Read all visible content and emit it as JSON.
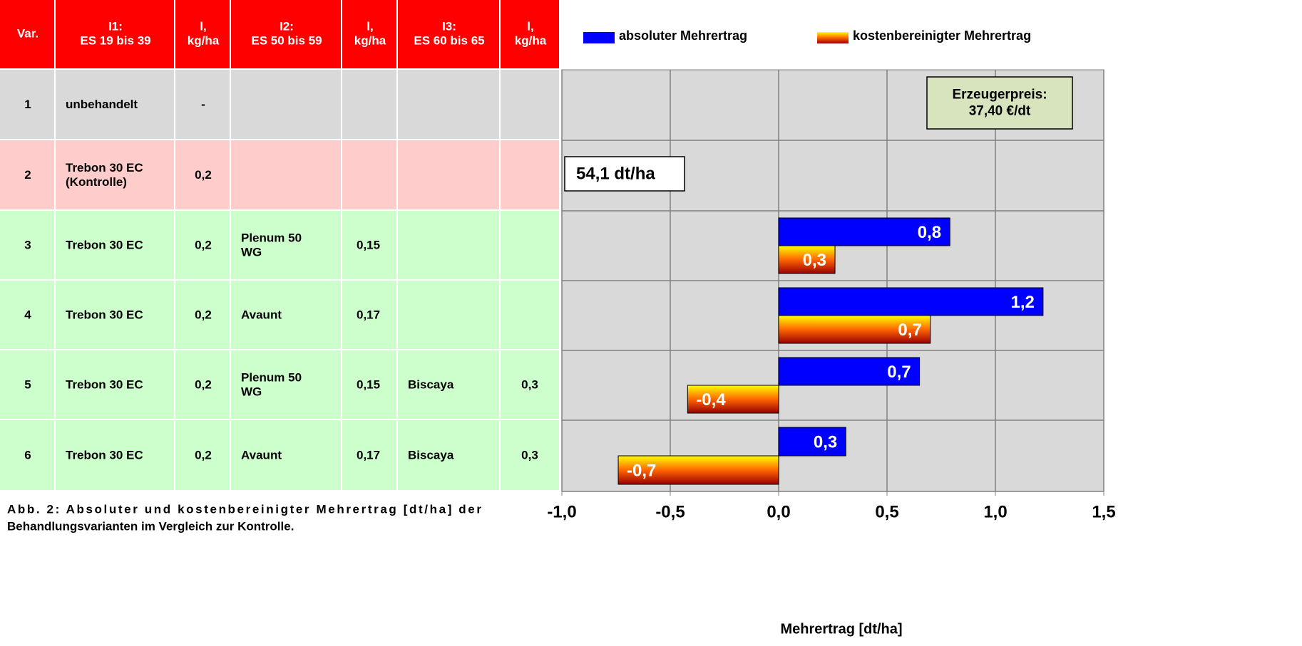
{
  "table": {
    "header": [
      [
        "Var."
      ],
      [
        "I1:",
        "ES 19 bis 39"
      ],
      [
        "l,",
        "kg/ha"
      ],
      [
        "I2:",
        "ES 50 bis 59"
      ],
      [
        "l,",
        "kg/ha"
      ],
      [
        "I3:",
        "ES 60 bis 65"
      ],
      [
        "l,",
        "kg/ha"
      ]
    ],
    "rows": [
      [
        [
          "1"
        ],
        [
          "unbehandelt"
        ],
        [
          "-"
        ],
        [],
        [],
        [],
        []
      ],
      [
        [
          "2"
        ],
        [
          "Trebon 30 EC",
          "(Kontrolle)"
        ],
        [
          "0,2"
        ],
        [],
        [],
        [],
        []
      ],
      [
        [
          "3"
        ],
        [
          "Trebon 30 EC"
        ],
        [
          "0,2"
        ],
        [
          "Plenum 50",
          "WG"
        ],
        [
          "0,15"
        ],
        [],
        []
      ],
      [
        [
          "4"
        ],
        [
          "Trebon 30 EC"
        ],
        [
          "0,2"
        ],
        [
          "Avaunt"
        ],
        [
          "0,17"
        ],
        [],
        []
      ],
      [
        [
          "5"
        ],
        [
          "Trebon 30 EC"
        ],
        [
          "0,2"
        ],
        [
          "Plenum 50",
          "WG"
        ],
        [
          "0,15"
        ],
        [
          "Biscaya"
        ],
        [
          "0,3"
        ]
      ],
      [
        [
          "6"
        ],
        [
          "Trebon 30 EC"
        ],
        [
          "0,2"
        ],
        [
          "Avaunt"
        ],
        [
          "0,17"
        ],
        [
          "Biscaya"
        ],
        [
          "0,3"
        ]
      ]
    ],
    "header_color": "#ff0000",
    "row_colors": [
      "#d9d9d9",
      "#ffcccc",
      "#ccffcc",
      "#ccffcc",
      "#ccffcc",
      "#ccffcc"
    ]
  },
  "caption": [
    "Abb. 2: Absoluter und kostenbereinigter  Mehrertrag [dt/ha] der",
    "Behandlungsvarianten im Vergleich zur Kontrolle."
  ],
  "chart_data": {
    "type": "bar",
    "orientation": "horizontal",
    "x_label": "Mehrertrag [dt/ha]",
    "xlim": [
      -1,
      1.5
    ],
    "xticks": [
      {
        "value": -1,
        "label": "-1,0"
      },
      {
        "value": -0.5,
        "label": "-0,5"
      },
      {
        "value": 0,
        "label": "0,0"
      },
      {
        "value": 0.5,
        "label": "0,5"
      },
      {
        "value": 1,
        "label": "1,0"
      },
      {
        "value": 1.5,
        "label": "1,5"
      }
    ],
    "grid": true,
    "series": [
      {
        "name": "absoluter Mehrertrag",
        "color": "#0000ff",
        "values": [
          null,
          null,
          0.79,
          1.22,
          0.65,
          0.31
        ],
        "value_labels": [
          null,
          null,
          "0,8",
          "1,2",
          "0,7",
          "0,3"
        ]
      },
      {
        "name": "kostenbereinigter Mehrertrag",
        "color": "gradient",
        "values": [
          null,
          null,
          0.26,
          0.7,
          -0.42,
          -0.74
        ],
        "value_labels": [
          null,
          null,
          "0,3",
          "0,7",
          "-0,4",
          "-0,7"
        ]
      }
    ],
    "annotations": [
      [
        "54,1 dt/ha"
      ],
      [
        "Erzeugerpreis:",
        "37,40 €/dt"
      ]
    ]
  }
}
